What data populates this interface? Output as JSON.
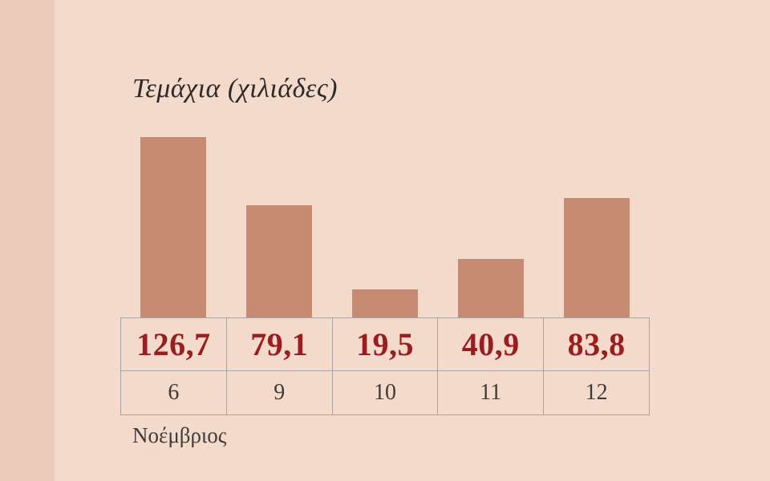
{
  "title": "Τεμάχια (χιλιάδες)",
  "month_label": "Νοέμβριος",
  "colors": {
    "background": "#f4dacb",
    "left_strip": "#eccbba",
    "bar": "#c68b72",
    "value_text": "#9a1d20",
    "tick_text": "#3c3c3c",
    "grid": "#a9a49f"
  },
  "chart_data": {
    "type": "bar",
    "title": "Τεμάχια (χιλιάδες)",
    "categories": [
      "6",
      "9",
      "10",
      "11",
      "12"
    ],
    "values": [
      126.7,
      79.1,
      19.5,
      40.9,
      83.8
    ],
    "value_labels": [
      "126,7",
      "79,1",
      "19,5",
      "40,9",
      "83,8"
    ],
    "xlabel": "Νοέμβριος",
    "ylabel": "Τεμάχια (χιλιάδες)",
    "ylim": [
      0,
      130
    ],
    "grid": false,
    "legend": false,
    "layout": "values shown in a table row under the bars, day numbers beneath"
  }
}
